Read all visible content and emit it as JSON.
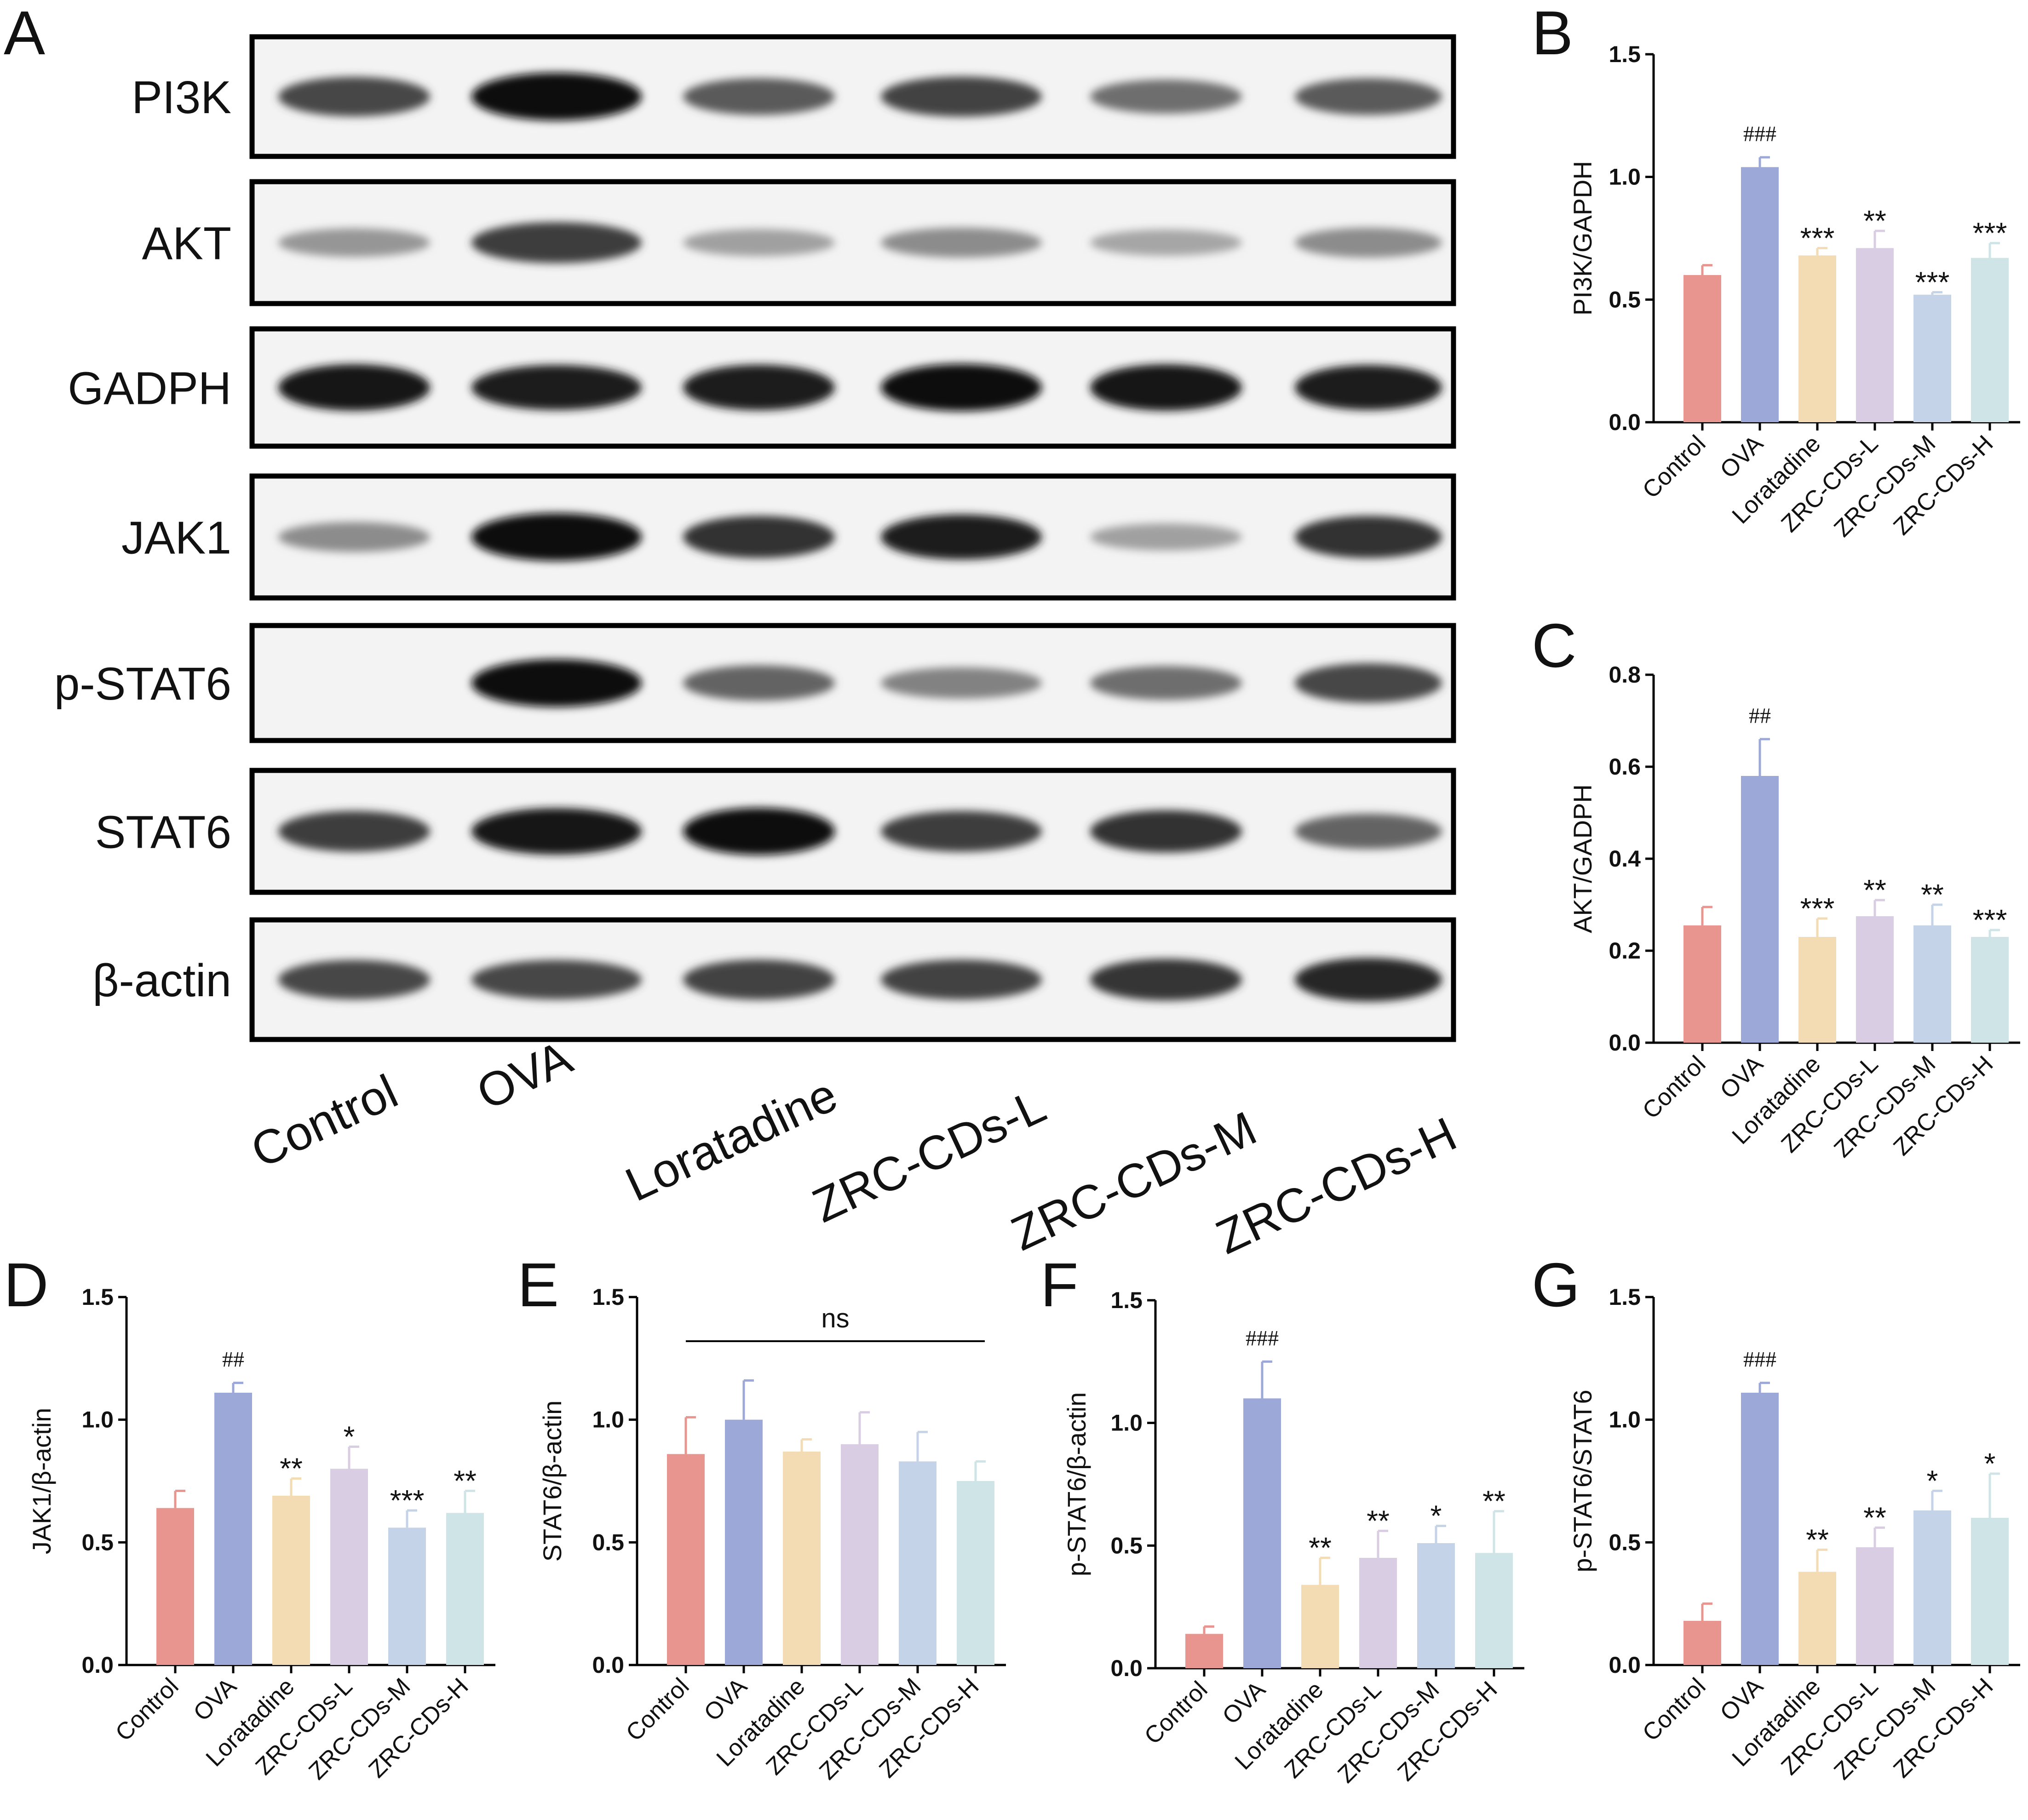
{
  "figure": {
    "panel_letters": [
      "A",
      "B",
      "C",
      "D",
      "E",
      "F",
      "G"
    ],
    "colors": {
      "Control": "#e8958f",
      "OVA": "#9ba8d8",
      "Loratadine": "#f3dcb3",
      "ZRC-CDs-L": "#d9cde3",
      "ZRC-CDs-M": "#c5d3e8",
      "ZRC-CDs-H": "#cfe4e6"
    }
  },
  "blot": {
    "rows": [
      {
        "label": "PI3K",
        "intensity": [
          0.7,
          1.0,
          0.6,
          0.72,
          0.5,
          0.6
        ]
      },
      {
        "label": "AKT",
        "intensity": [
          0.3,
          0.75,
          0.25,
          0.35,
          0.22,
          0.35
        ]
      },
      {
        "label": "GADPH",
        "intensity": [
          0.95,
          0.9,
          0.92,
          0.98,
          0.95,
          0.9
        ]
      },
      {
        "label": "JAK1",
        "intensity": [
          0.35,
          1.0,
          0.8,
          0.9,
          0.25,
          0.8
        ]
      },
      {
        "label": "p-STAT6",
        "intensity": [
          0.0,
          1.0,
          0.55,
          0.4,
          0.5,
          0.7
        ]
      },
      {
        "label": "STAT6",
        "intensity": [
          0.75,
          0.95,
          0.98,
          0.75,
          0.8,
          0.55
        ]
      },
      {
        "label": "β-actin",
        "intensity": [
          0.7,
          0.7,
          0.72,
          0.72,
          0.78,
          0.85
        ]
      }
    ],
    "lanes": [
      "Control",
      "OVA",
      "Loratadine",
      "ZRC-CDs-L",
      "ZRC-CDs-M",
      "ZRC-CDs-H"
    ]
  },
  "chart_data": [
    {
      "panel": "B",
      "type": "bar",
      "ylabel": "PI3K/GAPDH",
      "ylim": [
        0,
        1.5
      ],
      "yticks": [
        "0.0",
        "0.5",
        "1.0",
        "1.5"
      ],
      "categories": [
        "Control",
        "OVA",
        "Loratadine",
        "ZRC-CDs-L",
        "ZRC-CDs-M",
        "ZRC-CDs-H"
      ],
      "values": [
        0.6,
        1.04,
        0.68,
        0.71,
        0.52,
        0.67
      ],
      "errors": [
        0.04,
        0.04,
        0.03,
        0.07,
        0.01,
        0.06
      ],
      "annotations": [
        "",
        "###",
        "***",
        "**",
        "***",
        "***"
      ]
    },
    {
      "panel": "C",
      "type": "bar",
      "ylabel": "AKT/GADPH",
      "ylim": [
        0,
        0.8
      ],
      "yticks": [
        "0.0",
        "0.2",
        "0.4",
        "0.6",
        "0.8"
      ],
      "categories": [
        "Control",
        "OVA",
        "Loratadine",
        "ZRC-CDs-L",
        "ZRC-CDs-M",
        "ZRC-CDs-H"
      ],
      "values": [
        0.255,
        0.58,
        0.23,
        0.275,
        0.255,
        0.23
      ],
      "errors": [
        0.04,
        0.08,
        0.04,
        0.035,
        0.045,
        0.015
      ],
      "annotations": [
        "",
        "##",
        "***",
        "**",
        "**",
        "***"
      ]
    },
    {
      "panel": "D",
      "type": "bar",
      "ylabel": "JAK1/β-actin",
      "ylim": [
        0,
        1.5
      ],
      "yticks": [
        "0.0",
        "0.5",
        "1.0",
        "1.5"
      ],
      "categories": [
        "Control",
        "OVA",
        "Loratadine",
        "ZRC-CDs-L",
        "ZRC-CDs-M",
        "ZRC-CDs-H"
      ],
      "values": [
        0.64,
        1.11,
        0.69,
        0.8,
        0.56,
        0.62
      ],
      "errors": [
        0.07,
        0.04,
        0.07,
        0.09,
        0.07,
        0.09
      ],
      "annotations": [
        "",
        "##",
        "**",
        "*",
        "***",
        "**"
      ]
    },
    {
      "panel": "E",
      "type": "bar",
      "ylabel": "STAT6/β-actin",
      "ylim": [
        0,
        1.5
      ],
      "yticks": [
        "0.0",
        "0.5",
        "1.0",
        "1.5"
      ],
      "categories": [
        "Control",
        "OVA",
        "Loratadine",
        "ZRC-CDs-L",
        "ZRC-CDs-M",
        "ZRC-CDs-H"
      ],
      "values": [
        0.86,
        1.0,
        0.87,
        0.9,
        0.83,
        0.75
      ],
      "errors": [
        0.15,
        0.16,
        0.05,
        0.13,
        0.12,
        0.08
      ],
      "annotations": [
        "",
        "",
        "",
        "",
        "",
        ""
      ],
      "bracket_label": "ns"
    },
    {
      "panel": "F",
      "type": "bar",
      "ylabel": "p-STAT6/β-actin",
      "ylim": [
        0,
        1.5
      ],
      "yticks": [
        "0.0",
        "0.5",
        "1.0",
        "1.5"
      ],
      "categories": [
        "Control",
        "OVA",
        "Loratadine",
        "ZRC-CDs-L",
        "ZRC-CDs-M",
        "ZRC-CDs-H"
      ],
      "values": [
        0.14,
        1.1,
        0.34,
        0.45,
        0.51,
        0.47
      ],
      "errors": [
        0.03,
        0.15,
        0.11,
        0.11,
        0.07,
        0.17
      ],
      "annotations": [
        "",
        "###",
        "**",
        "**",
        "*",
        "**"
      ]
    },
    {
      "panel": "G",
      "type": "bar",
      "ylabel": "p-STAT6/STAT6",
      "ylim": [
        0,
        1.5
      ],
      "yticks": [
        "0.0",
        "0.5",
        "1.0",
        "1.5"
      ],
      "categories": [
        "Control",
        "OVA",
        "Loratadine",
        "ZRC-CDs-L",
        "ZRC-CDs-M",
        "ZRC-CDs-H"
      ],
      "values": [
        0.18,
        1.11,
        0.38,
        0.48,
        0.63,
        0.6
      ],
      "errors": [
        0.07,
        0.04,
        0.09,
        0.08,
        0.08,
        0.18
      ],
      "annotations": [
        "",
        "###",
        "**",
        "**",
        "*",
        "*"
      ]
    }
  ]
}
